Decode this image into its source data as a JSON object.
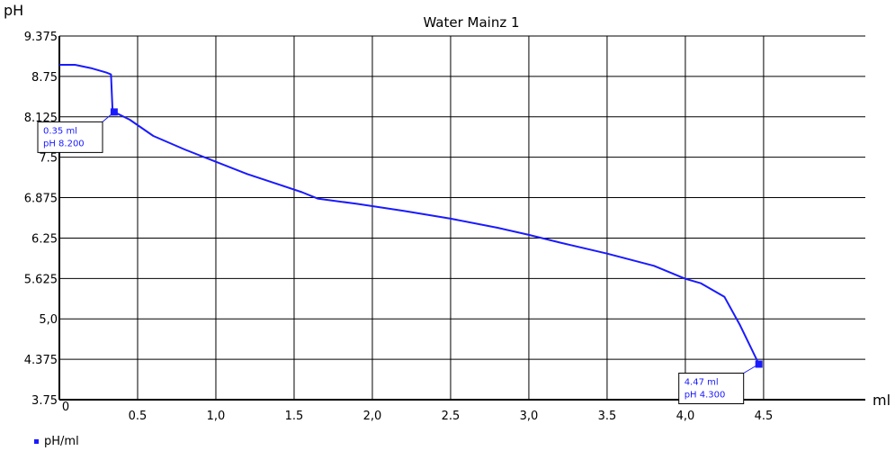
{
  "chart_data": {
    "type": "line",
    "title": "Water Mainz 1",
    "ylabel": "pH",
    "xlabel": "ml",
    "xlim": [
      0,
      5.15
    ],
    "ylim": [
      3.75,
      9.375
    ],
    "x_ticks": [
      {
        "value": 0.5,
        "label": "0.5"
      },
      {
        "value": 1.0,
        "label": "1,0"
      },
      {
        "value": 1.5,
        "label": "1.5"
      },
      {
        "value": 2.0,
        "label": "2,0"
      },
      {
        "value": 2.5,
        "label": "2.5"
      },
      {
        "value": 3.0,
        "label": "3,0"
      },
      {
        "value": 3.5,
        "label": "3.5"
      },
      {
        "value": 4.0,
        "label": "4,0"
      },
      {
        "value": 4.5,
        "label": "4.5"
      }
    ],
    "x_origin_label": "0",
    "y_ticks": [
      {
        "value": 9.375,
        "label": "9.375"
      },
      {
        "value": 8.75,
        "label": "8.75"
      },
      {
        "value": 8.125,
        "label": "8.125"
      },
      {
        "value": 7.5,
        "label": "7.5"
      },
      {
        "value": 6.875,
        "label": "6.875"
      },
      {
        "value": 6.25,
        "label": "6.25"
      },
      {
        "value": 5.625,
        "label": "5.625"
      },
      {
        "value": 5.0,
        "label": "5,0"
      },
      {
        "value": 4.375,
        "label": "4.375"
      },
      {
        "value": 3.75,
        "label": "3.75"
      }
    ],
    "grid": true,
    "legend_position": "bottom-left",
    "series": [
      {
        "name": "pH/ml",
        "color": "#1a1aff",
        "x": [
          0,
          0.1,
          0.2,
          0.3,
          0.33,
          0.34,
          0.35,
          0.45,
          0.6,
          0.8,
          1.0,
          1.2,
          1.4,
          1.55,
          1.65,
          1.9,
          2.2,
          2.5,
          2.8,
          3.0,
          3.2,
          3.5,
          3.8,
          4.0,
          4.1,
          4.25,
          4.35,
          4.47
        ],
        "y": [
          8.93,
          8.93,
          8.88,
          8.81,
          8.78,
          8.2,
          8.2,
          8.08,
          7.83,
          7.62,
          7.43,
          7.24,
          7.08,
          6.96,
          6.86,
          6.78,
          6.67,
          6.55,
          6.41,
          6.3,
          6.18,
          6.01,
          5.82,
          5.62,
          5.55,
          5.34,
          4.9,
          4.3
        ]
      }
    ],
    "annotations": [
      {
        "line1": "0.35 ml",
        "line2": "pH 8.200",
        "x": 0.35,
        "y": 8.2
      },
      {
        "line1": "4.47 ml",
        "line2": "pH 4.300",
        "x": 4.47,
        "y": 4.3
      }
    ]
  },
  "legend": {
    "label": "pH/ml"
  }
}
